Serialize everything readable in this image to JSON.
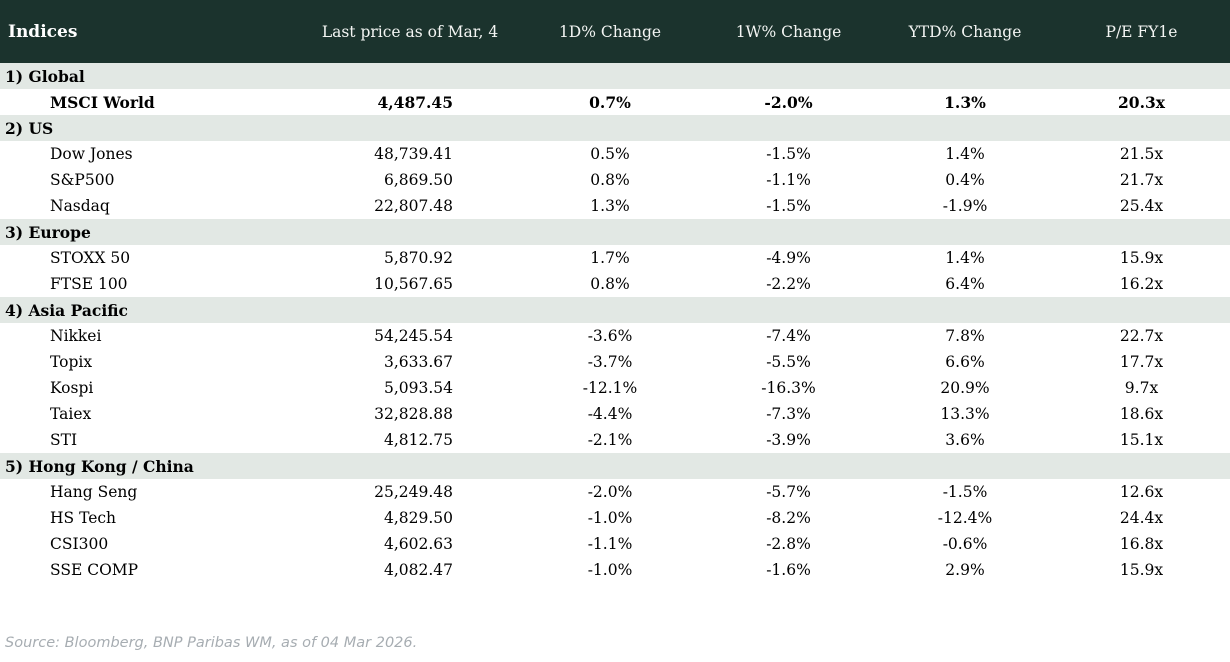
{
  "table": {
    "title": "Indices",
    "columns": [
      {
        "label": "Indices"
      },
      {
        "label": "Last price as of Mar, 4"
      },
      {
        "label": "1D% Change"
      },
      {
        "label": "1W% Change"
      },
      {
        "label": "YTD% Change"
      },
      {
        "label": "P/E FY1e"
      }
    ],
    "sections": [
      {
        "label": "1) Global",
        "rows": [
          {
            "name": "MSCI World",
            "price": "4,487.45",
            "d1": "0.7%",
            "w1": "-2.0%",
            "ytd": "1.3%",
            "pe": "20.3x",
            "bold": true
          }
        ]
      },
      {
        "label": "2) US",
        "rows": [
          {
            "name": "Dow Jones",
            "price": "48,739.41",
            "d1": "0.5%",
            "w1": "-1.5%",
            "ytd": "1.4%",
            "pe": "21.5x",
            "bold": false
          },
          {
            "name": "S&P500",
            "price": "6,869.50",
            "d1": "0.8%",
            "w1": "-1.1%",
            "ytd": "0.4%",
            "pe": "21.7x",
            "bold": false
          },
          {
            "name": "Nasdaq",
            "price": "22,807.48",
            "d1": "1.3%",
            "w1": "-1.5%",
            "ytd": "-1.9%",
            "pe": "25.4x",
            "bold": false
          }
        ]
      },
      {
        "label": "3) Europe",
        "rows": [
          {
            "name": "STOXX 50",
            "price": "5,870.92",
            "d1": "1.7%",
            "w1": "-4.9%",
            "ytd": "1.4%",
            "pe": "15.9x",
            "bold": false
          },
          {
            "name": "FTSE 100",
            "price": "10,567.65",
            "d1": "0.8%",
            "w1": "-2.2%",
            "ytd": "6.4%",
            "pe": "16.2x",
            "bold": false
          }
        ]
      },
      {
        "label": "4) Asia Pacific",
        "rows": [
          {
            "name": "Nikkei",
            "price": "54,245.54",
            "d1": "-3.6%",
            "w1": "-7.4%",
            "ytd": "7.8%",
            "pe": "22.7x",
            "bold": false
          },
          {
            "name": "Topix",
            "price": "3,633.67",
            "d1": "-3.7%",
            "w1": "-5.5%",
            "ytd": "6.6%",
            "pe": "17.7x",
            "bold": false
          },
          {
            "name": "Kospi",
            "price": "5,093.54",
            "d1": "-12.1%",
            "w1": "-16.3%",
            "ytd": "20.9%",
            "pe": "9.7x",
            "bold": false
          },
          {
            "name": "Taiex",
            "price": "32,828.88",
            "d1": "-4.4%",
            "w1": "-7.3%",
            "ytd": "13.3%",
            "pe": "18.6x",
            "bold": false
          },
          {
            "name": "STI",
            "price": "4,812.75",
            "d1": "-2.1%",
            "w1": "-3.9%",
            "ytd": "3.6%",
            "pe": "15.1x",
            "bold": false
          }
        ]
      },
      {
        "label": "5) Hong Kong / China",
        "rows": [
          {
            "name": "Hang Seng",
            "price": "25,249.48",
            "d1": "-2.0%",
            "w1": "-5.7%",
            "ytd": "-1.5%",
            "pe": "12.6x",
            "bold": false
          },
          {
            "name": "HS Tech",
            "price": "4,829.50",
            "d1": "-1.0%",
            "w1": "-8.2%",
            "ytd": "-12.4%",
            "pe": "24.4x",
            "bold": false
          },
          {
            "name": "CSI300",
            "price": "4,602.63",
            "d1": "-1.1%",
            "w1": "-2.8%",
            "ytd": "-0.6%",
            "pe": "16.8x",
            "bold": false
          },
          {
            "name": "SSE COMP",
            "price": "4,082.47",
            "d1": "-1.0%",
            "w1": "-1.6%",
            "ytd": "2.9%",
            "pe": "15.9x",
            "bold": false
          }
        ]
      }
    ]
  },
  "footer": {
    "source": "Source: Bloomberg, BNP Paribas WM, as of 04 Mar 2026."
  },
  "colors": {
    "positive": "#008000",
    "negative": "#c00000",
    "header_bg": "#1b332d",
    "section_bg": "#e2e8e4"
  }
}
